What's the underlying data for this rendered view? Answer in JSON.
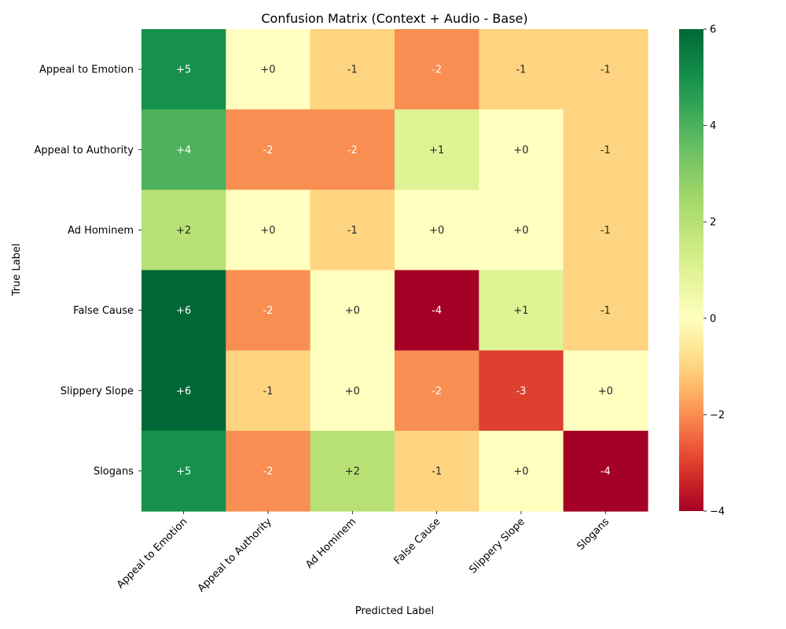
{
  "chart_data": {
    "type": "heatmap",
    "title": "Confusion Matrix (Context + Audio - Base)",
    "xlabel": "Predicted Label",
    "ylabel": "True Label",
    "x_categories": [
      "Appeal to Emotion",
      "Appeal to Authority",
      "Ad Hominem",
      "False Cause",
      "Slippery Slope",
      "Slogans"
    ],
    "y_categories": [
      "Appeal to Emotion",
      "Appeal to Authority",
      "Ad Hominem",
      "False Cause",
      "Slippery Slope",
      "Slogans"
    ],
    "values": [
      [
        5,
        0,
        -1,
        -2,
        -1,
        -1
      ],
      [
        4,
        -2,
        -2,
        1,
        0,
        -1
      ],
      [
        2,
        0,
        -1,
        0,
        0,
        -1
      ],
      [
        6,
        -2,
        0,
        -4,
        1,
        -1
      ],
      [
        6,
        -1,
        0,
        -2,
        -3,
        0
      ],
      [
        5,
        -2,
        2,
        -1,
        0,
        -4
      ]
    ],
    "cell_labels": [
      [
        "+5",
        "+0",
        "-1",
        "-2",
        "-1",
        "-1"
      ],
      [
        "+4",
        "-2",
        "-2",
        "+1",
        "+0",
        "-1"
      ],
      [
        "+2",
        "+0",
        "-1",
        "+0",
        "+0",
        "-1"
      ],
      [
        "+6",
        "-2",
        "+0",
        "-4",
        "+1",
        "-1"
      ],
      [
        "+6",
        "-1",
        "+0",
        "-2",
        "-3",
        "+0"
      ],
      [
        "+5",
        "-2",
        "+2",
        "-1",
        "+0",
        "-4"
      ]
    ],
    "colormap": "RdYlGn",
    "color_range": [
      -4,
      6
    ],
    "colorbar_ticks": [
      6,
      4,
      2,
      0,
      -2,
      -4
    ],
    "colorbar_tick_labels": [
      "6",
      "4",
      "2",
      "0",
      "−2",
      "−4"
    ]
  }
}
